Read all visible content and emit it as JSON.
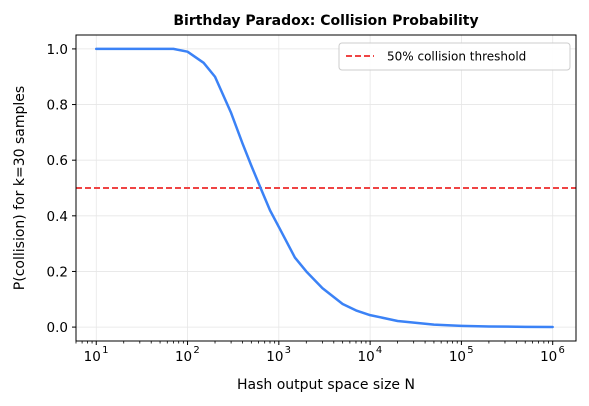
{
  "chart_data": {
    "type": "line",
    "title": "Birthday Paradox: Collision Probability",
    "xlabel": "Hash output space size N",
    "ylabel": "P(collision) for k=30 samples",
    "x_scale": "log",
    "xlim": [
      6,
      1800000
    ],
    "ylim": [
      -0.05,
      1.05
    ],
    "x_ticks": [
      {
        "value": 10,
        "base": "10",
        "exp": "1"
      },
      {
        "value": 100,
        "base": "10",
        "exp": "2"
      },
      {
        "value": 1000,
        "base": "10",
        "exp": "3"
      },
      {
        "value": 10000,
        "base": "10",
        "exp": "4"
      },
      {
        "value": 100000,
        "base": "10",
        "exp": "5"
      },
      {
        "value": 1000000,
        "base": "10",
        "exp": "6"
      }
    ],
    "y_ticks": [
      {
        "value": 0.0,
        "label": "0.0"
      },
      {
        "value": 0.2,
        "label": "0.2"
      },
      {
        "value": 0.4,
        "label": "0.4"
      },
      {
        "value": 0.6,
        "label": "0.6"
      },
      {
        "value": 0.8,
        "label": "0.8"
      },
      {
        "value": 1.0,
        "label": "1.0"
      }
    ],
    "grid": true,
    "legend_position": "top-right",
    "series": [
      {
        "color": "#3b82f6",
        "x": [
          10,
          15,
          20,
          30,
          50,
          70,
          100,
          150,
          200,
          300,
          400,
          500,
          650,
          800,
          1000,
          1500,
          2000,
          3000,
          5000,
          7000,
          10000,
          20000,
          50000,
          100000,
          200000,
          500000,
          1000000
        ],
        "y": [
          1.0,
          1.0,
          1.0,
          1.0,
          1.0,
          1.0,
          0.99,
          0.95,
          0.9,
          0.77,
          0.66,
          0.58,
          0.49,
          0.42,
          0.36,
          0.25,
          0.2,
          0.14,
          0.083,
          0.06,
          0.043,
          0.022,
          0.0087,
          0.0044,
          0.0022,
          0.0009,
          0.0004
        ]
      }
    ],
    "reference_lines": [
      {
        "name": "50% collision threshold",
        "y": 0.5,
        "color": "#ef4444",
        "style": "dashed"
      }
    ]
  }
}
